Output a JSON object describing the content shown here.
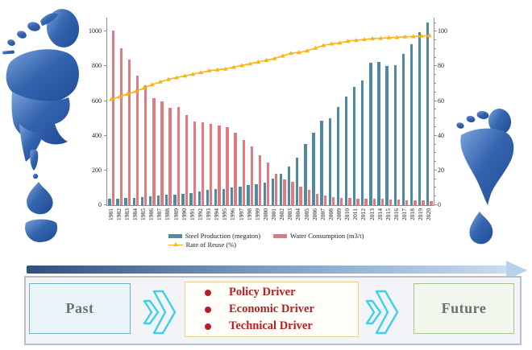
{
  "colors": {
    "steel_bar": "#4e8ba3",
    "water_bar": "#e2797f",
    "rate_line": "#fbb416",
    "driver_text": "#b32222",
    "past_future_text": "#6e6e6e",
    "chevron": "#3fd0e8",
    "arrow_start": "#2f4f7d",
    "arrow_end": "#c9dcf0",
    "footprint_blue": "#3565ae"
  },
  "chart_data": {
    "type": "bar",
    "title": "",
    "categories": [
      "1981",
      "1982",
      "1983",
      "1984",
      "1985",
      "1986",
      "1987",
      "1988",
      "1989",
      "1990",
      "1991",
      "1992",
      "1993",
      "1994",
      "1995",
      "1996",
      "1997",
      "1998",
      "1999",
      "2000",
      "2001",
      "2002",
      "2003",
      "2004",
      "2005",
      "2006",
      "2007",
      "2008",
      "2009",
      "2010",
      "2011",
      "2012",
      "2013",
      "2014",
      "2015",
      "2016",
      "2017",
      "2018",
      "2019",
      "2020"
    ],
    "series": [
      {
        "name": "Steel Production (megaton)",
        "type": "bar",
        "axis": "left",
        "color": "#4e8ba3",
        "values": [
          35,
          37,
          40,
          43,
          47,
          52,
          56,
          59,
          61,
          66,
          70,
          81,
          89,
          93,
          95,
          101,
          109,
          114,
          123,
          128,
          151,
          182,
          222,
          272,
          353,
          419,
          489,
          500,
          568,
          627,
          683,
          720,
          822,
          823,
          804,
          808,
          871,
          928,
          996,
          1053
        ]
      },
      {
        "name": "Water Consumption (m3/t)",
        "type": "bar",
        "axis": "left",
        "color": "#e2797f",
        "values": [
          1005,
          905,
          840,
          748,
          690,
          615,
          598,
          562,
          565,
          520,
          482,
          478,
          470,
          460,
          450,
          418,
          376,
          340,
          286,
          246,
          180,
          150,
          136,
          106,
          86,
          66,
          56,
          48,
          42,
          40,
          38,
          37,
          36,
          35,
          33,
          32,
          30,
          29,
          27,
          25
        ]
      },
      {
        "name": "Rate of Reuse (%)",
        "type": "line",
        "marker": "triangle",
        "axis": "right",
        "color": "#fbb416",
        "values": [
          61,
          62.5,
          64,
          65.5,
          67.5,
          69.5,
          71,
          72.5,
          73.5,
          74.5,
          75.5,
          76.5,
          77.5,
          78,
          78.5,
          79.5,
          80.5,
          81.5,
          82.5,
          83.5,
          84.5,
          86,
          87.5,
          88,
          89,
          90.5,
          92,
          93,
          93.5,
          94.5,
          95,
          95.5,
          96,
          96.2,
          96.5,
          96.7,
          97,
          97.2,
          97.5,
          97.8
        ]
      }
    ],
    "left_axis": {
      "range": [
        0,
        1080
      ],
      "ticks": [
        0,
        200,
        400,
        600,
        800,
        1000
      ]
    },
    "right_axis": {
      "range": [
        0,
        108
      ],
      "ticks": [
        0,
        20,
        40,
        60,
        80,
        100
      ],
      "minor_tick_step": 5
    },
    "grid": false,
    "legend_position": "bottom"
  },
  "decor": {
    "left_footprint": "water-footprint-icon",
    "right_footprint": "water-footprint-icon"
  },
  "timeline": {
    "past_label": "Past",
    "future_label": "Future",
    "drivers": [
      "Policy Driver",
      "Economic Driver",
      "Technical Driver"
    ]
  }
}
